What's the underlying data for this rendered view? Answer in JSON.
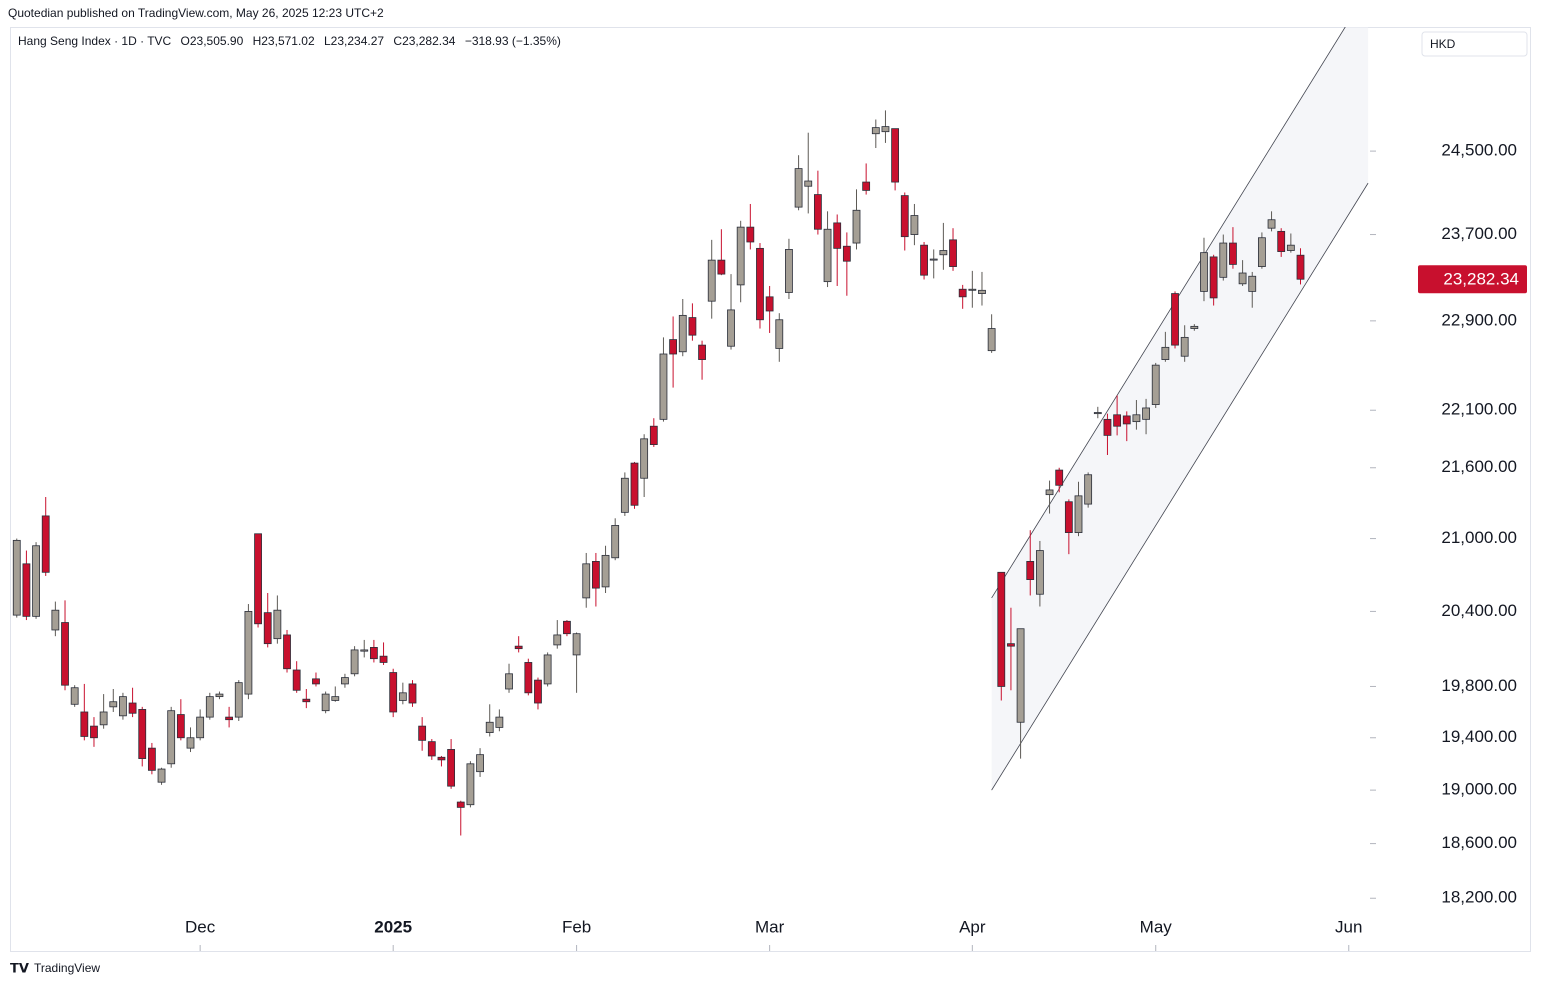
{
  "publisher": "Quotedian published on TradingView.com, May 26, 2025 12:23 UTC+2",
  "footer": "TradingView",
  "chart_data": {
    "type": "candlestick",
    "legend": {
      "symbol": "Hang Seng Index · 1D · TVC",
      "open": "O23,505.90",
      "high": "H23,571.02",
      "low": "L23,234.27",
      "close": "C23,282.34",
      "change": "−318.93 (−1.35%)"
    },
    "currency": "HKD",
    "up_color": "#a59f95",
    "down_color": "#c8102e",
    "log_scale": true,
    "xlim": [
      -0.7,
      140.2
    ],
    "xticks": [
      {
        "value": 19,
        "label": "Dec"
      },
      {
        "value": 39,
        "label": "2025"
      },
      {
        "value": 58,
        "label": "Feb"
      },
      {
        "value": 78,
        "label": "Mar"
      },
      {
        "value": 99,
        "label": "Apr"
      },
      {
        "value": 118,
        "label": "May"
      },
      {
        "value": 138,
        "label": "Jun"
      }
    ],
    "ylim": [
      17822,
      25740
    ],
    "yticks": [
      {
        "value": 18200,
        "label": "18,200.00"
      },
      {
        "value": 18600,
        "label": "18,600.00"
      },
      {
        "value": 19000,
        "label": "19,000.00"
      },
      {
        "value": 19400,
        "label": "19,400.00"
      },
      {
        "value": 19800,
        "label": "19,800.00"
      },
      {
        "value": 20400,
        "label": "20,400.00"
      },
      {
        "value": 21000,
        "label": "21,000.00"
      },
      {
        "value": 21600,
        "label": "21,600.00"
      },
      {
        "value": 22100,
        "label": "22,100.00"
      },
      {
        "value": 22900,
        "label": "22,900.00"
      },
      {
        "value": 23700,
        "label": "23,700.00"
      },
      {
        "value": 24500,
        "label": "24,500.00"
      }
    ],
    "last_price": {
      "value": 23282.34,
      "label": "23,282.34"
    },
    "channel": {
      "x": [
        101,
        140
      ],
      "upper": [
        20510,
        26120
      ],
      "lower": [
        19000,
        24190
      ]
    },
    "open": [
      20370,
      20790,
      20360,
      21190,
      20250,
      20310,
      19660,
      19600,
      19490,
      19500,
      19640,
      19570,
      19670,
      19620,
      19320,
      19060,
      19200,
      19580,
      19320,
      19400,
      19560,
      19720,
      19560,
      19560,
      19740,
      21040,
      20390,
      20180,
      20210,
      19930,
      19700,
      19860,
      19610,
      19690,
      19820,
      19900,
      20080,
      20110,
      20040,
      19910,
      19690,
      19820,
      19490,
      19370,
      19250,
      19310,
      18910,
      18890,
      19140,
      19440,
      19480,
      19780,
      20120,
      19990,
      19850,
      19820,
      20130,
      20320,
      20050,
      20510,
      20810,
      20600,
      20840,
      21220,
      21640,
      21510,
      21960,
      22020,
      22730,
      22620,
      22930,
      22680,
      23080,
      23460,
      22670,
      23230,
      23770,
      23570,
      23120,
      22650,
      23160,
      23960,
      24160,
      24080,
      23260,
      23810,
      23590,
      23620,
      24200,
      24670,
      24690,
      24720,
      24070,
      23700,
      23600,
      23460,
      23510,
      23650,
      23190,
      23180,
      23150,
      22630,
      20720,
      20140,
      19520,
      20810,
      20540,
      21370,
      21580,
      21310,
      21050,
      21290,
      22070,
      22020,
      22060,
      22050,
      22000,
      22020,
      22150,
      22550,
      23150,
      22580,
      22830,
      23170,
      23490,
      23300,
      23620,
      23240,
      23170,
      23400,
      23760,
      23730,
      23550,
      23505.9
    ],
    "high": [
      21000,
      20900,
      20970,
      21350,
      20480,
      20490,
      19810,
      19820,
      19560,
      19740,
      19780,
      19750,
      19790,
      19640,
      19360,
      19170,
      19640,
      19700,
      19480,
      19620,
      19750,
      19760,
      19640,
      19850,
      20460,
      21040,
      20550,
      20530,
      20250,
      20000,
      19780,
      19910,
      19760,
      19800,
      19900,
      20120,
      20170,
      20170,
      20150,
      19940,
      19830,
      19850,
      19560,
      19390,
      19260,
      19390,
      18920,
      19220,
      19320,
      19660,
      19620,
      19980,
      20200,
      20020,
      19870,
      20070,
      20330,
      20330,
      20230,
      20880,
      20880,
      20940,
      21170,
      21560,
      21650,
      21890,
      22030,
      22750,
      22940,
      23100,
      23060,
      22720,
      23650,
      23750,
      23330,
      23830,
      23990,
      23620,
      23220,
      22970,
      23660,
      24460,
      24680,
      24310,
      23920,
      23890,
      23720,
      24130,
      24380,
      24810,
      24900,
      24720,
      24100,
      23990,
      23630,
      23560,
      23810,
      23760,
      23230,
      23360,
      23350,
      22960,
      20720,
      20430,
      20260,
      21070,
      20980,
      21490,
      21600,
      21330,
      21480,
      21560,
      22130,
      22070,
      22230,
      22090,
      22190,
      22200,
      22520,
      22800,
      23170,
      22860,
      22870,
      23670,
      23510,
      23700,
      23770,
      23460,
      23350,
      23720,
      23920,
      23760,
      23710,
      23571.02
    ],
    "low": [
      20350,
      20330,
      20340,
      20690,
      20200,
      19770,
      19640,
      19380,
      19330,
      19470,
      19600,
      19540,
      19560,
      19180,
      19120,
      19040,
      19170,
      19380,
      19290,
      19380,
      19540,
      19700,
      19480,
      19530,
      19700,
      20270,
      20110,
      20140,
      19910,
      19750,
      19630,
      19800,
      19590,
      19680,
      19790,
      19880,
      20030,
      19990,
      19970,
      19560,
      19660,
      19640,
      19300,
      19230,
      19180,
      19010,
      18660,
      18870,
      19100,
      19410,
      19450,
      19750,
      20070,
      19730,
      19620,
      19800,
      20100,
      20200,
      19750,
      20430,
      20440,
      20550,
      20820,
      21190,
      21250,
      21350,
      21780,
      22000,
      22300,
      22580,
      22720,
      22370,
      22920,
      23320,
      22640,
      23070,
      23560,
      22830,
      22790,
      22530,
      23100,
      23930,
      23900,
      23700,
      23210,
      23220,
      23130,
      23560,
      24080,
      24530,
      24580,
      24120,
      23550,
      23600,
      23280,
      23290,
      23370,
      23360,
      23010,
      23020,
      23040,
      22610,
      19690,
      19770,
      19240,
      20530,
      20440,
      21210,
      21390,
      20870,
      21020,
      21260,
      22030,
      21710,
      21880,
      21830,
      21930,
      21890,
      22120,
      22530,
      22650,
      22530,
      22810,
      23080,
      23040,
      23270,
      23380,
      23220,
      23020,
      23380,
      23730,
      23490,
      23530,
      23234.27
    ],
    "close": [
      20985,
      20360,
      20940,
      20720,
      20410,
      19810,
      19790,
      19410,
      19400,
      19600,
      19680,
      19720,
      19590,
      19240,
      19150,
      19160,
      19610,
      19400,
      19400,
      19560,
      19720,
      19740,
      19540,
      19830,
      20400,
      20300,
      20140,
      20410,
      19940,
      19770,
      19680,
      19820,
      19740,
      19720,
      19870,
      20090,
      20090,
      20020,
      19990,
      19600,
      19750,
      19670,
      19380,
      19260,
      19230,
      19030,
      18870,
      19200,
      19270,
      19520,
      19560,
      19900,
      20100,
      19750,
      19670,
      20050,
      20210,
      20220,
      20220,
      20790,
      20590,
      20860,
      21110,
      21510,
      21280,
      21850,
      21800,
      22600,
      22600,
      22950,
      22770,
      22550,
      23460,
      23330,
      23000,
      23770,
      23630,
      22910,
      22990,
      22910,
      23560,
      24330,
      24210,
      23750,
      23750,
      23570,
      23450,
      23930,
      24120,
      24730,
      24740,
      24200,
      23680,
      23880,
      23320,
      23470,
      23550,
      23400,
      23120,
      23190,
      23180,
      22830,
      19800,
      20120,
      20260,
      20660,
      20900,
      21410,
      21450,
      21050,
      21360,
      21540,
      22080,
      21880,
      21960,
      21980,
      22060,
      22120,
      22500,
      22660,
      22680,
      22750,
      22850,
      23530,
      23110,
      23620,
      23420,
      23340,
      23310,
      23670,
      23840,
      23540,
      23600,
      23282.34
    ]
  }
}
